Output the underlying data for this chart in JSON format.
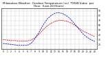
{
  "title": "Milwaukee Weather  Outdoor Temperature (vs)  THSW Index  per Hour  (Last 24 Hours)",
  "background_color": "#ffffff",
  "plot_bg_color": "#ffffff",
  "grid_color": "#888888",
  "temp_color": "#cc0000",
  "thsw_color": "#0000cc",
  "hours": [
    0,
    1,
    2,
    3,
    4,
    5,
    6,
    7,
    8,
    9,
    10,
    11,
    12,
    13,
    14,
    15,
    16,
    17,
    18,
    19,
    20,
    21,
    22,
    23
  ],
  "temp_values": [
    30,
    29,
    28,
    28,
    27,
    27,
    27,
    29,
    34,
    41,
    50,
    58,
    64,
    68,
    70,
    70,
    68,
    65,
    60,
    54,
    48,
    44,
    40,
    36
  ],
  "thsw_values": [
    22,
    21,
    20,
    19,
    18,
    18,
    18,
    22,
    32,
    45,
    60,
    72,
    80,
    85,
    86,
    84,
    79,
    72,
    62,
    52,
    42,
    35,
    30,
    26
  ],
  "ylim": [
    10,
    95
  ],
  "yticks": [
    20,
    30,
    40,
    50,
    60,
    70,
    80,
    90
  ],
  "title_fontsize": 3.0,
  "tick_fontsize": 2.2,
  "linewidth": 0.55
}
